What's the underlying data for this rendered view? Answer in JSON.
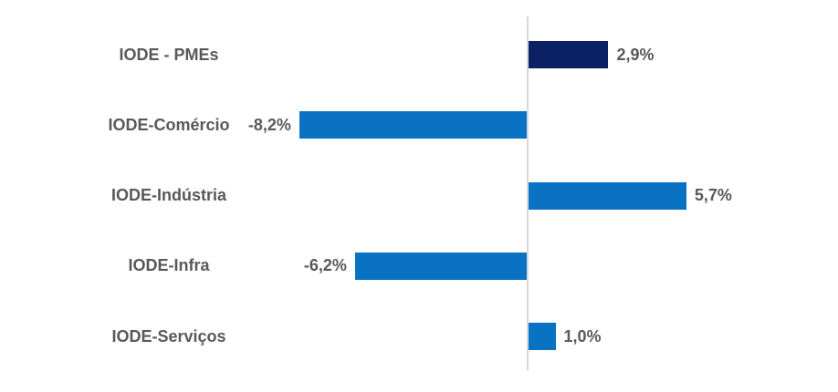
{
  "chart_data": {
    "type": "bar",
    "orientation": "horizontal",
    "title": "",
    "xlabel": "",
    "ylabel": "",
    "categories": [
      "IODE - PMEs",
      "IODE-Comércio",
      "IODE-Indústria",
      "IODE-Infra",
      "IODE-Serviços"
    ],
    "values": [
      2.9,
      -8.2,
      5.7,
      -6.2,
      1.0
    ],
    "value_labels": [
      "2,9%",
      "-8,2%",
      "5,7%",
      "-6,2%",
      "1,0%"
    ],
    "unit": "%",
    "decimal_separator": ",",
    "xlim": [
      -8.2,
      5.7
    ],
    "grid": false,
    "legend": false,
    "bar_colors": [
      "#0B2163",
      "#0A72C3",
      "#0A72C3",
      "#0A72C3",
      "#0A72C3"
    ],
    "highlight_color": "#0B2163",
    "series_color": "#0A72C3",
    "text_color": "#595959",
    "axis_color": "#D9D9D9",
    "background_color": "#FFFFFF"
  }
}
